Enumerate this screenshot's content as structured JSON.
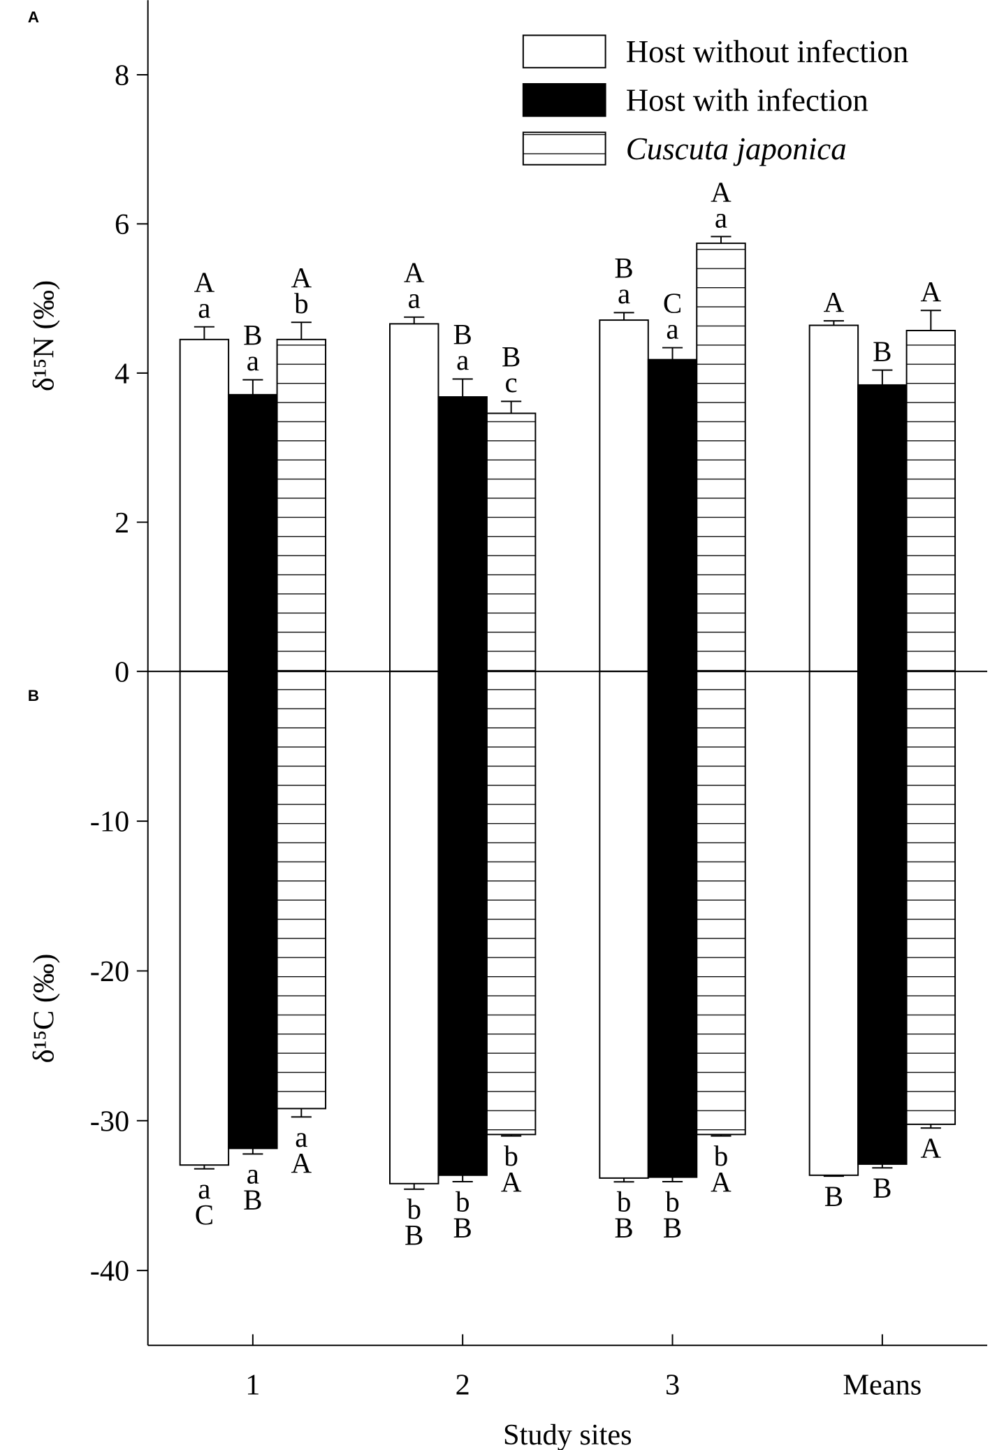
{
  "chart_data": [
    {
      "type": "bar",
      "panel_label": "A",
      "ylabel": "δ¹⁵N (‰)",
      "ylim": [
        0,
        9
      ],
      "yticks": [
        0,
        2,
        4,
        6,
        8
      ],
      "legend": "upper right",
      "series": [
        {
          "name": "Host without infection",
          "color": "#ffffff",
          "hatch": false,
          "values": [
            4.45,
            4.66,
            4.71,
            4.64
          ],
          "errors": [
            0.17,
            0.09,
            0.1,
            0.06
          ],
          "labels": [
            [
              "A",
              "a"
            ],
            [
              "A",
              "a"
            ],
            [
              "B",
              "a"
            ],
            [
              "A"
            ]
          ]
        },
        {
          "name": "Host with infection",
          "color": "#000000",
          "hatch": false,
          "values": [
            3.71,
            3.68,
            4.18,
            3.84
          ],
          "errors": [
            0.2,
            0.24,
            0.16,
            0.2
          ],
          "labels": [
            [
              "B",
              "a"
            ],
            [
              "B",
              "a"
            ],
            [
              "C",
              "a"
            ],
            [
              "B"
            ]
          ]
        },
        {
          "name": "Cuscuta japonica",
          "color": "#ffffff",
          "hatch": true,
          "values": [
            4.45,
            3.46,
            5.74,
            4.57
          ],
          "errors": [
            0.23,
            0.16,
            0.09,
            0.27
          ],
          "labels": [
            [
              "A",
              "b"
            ],
            [
              "B",
              "c"
            ],
            [
              "A",
              "a"
            ],
            [
              "A"
            ]
          ]
        }
      ]
    },
    {
      "type": "bar",
      "panel_label": "B",
      "ylabel": "δ¹⁵C (‰)",
      "xlabel": "Study sites",
      "categories": [
        "1",
        "2",
        "3",
        "Means"
      ],
      "ylim": [
        -45,
        0
      ],
      "yticks": [
        -40,
        -30,
        -20,
        -10
      ],
      "series": [
        {
          "color": "#ffffff",
          "hatch": false,
          "values": [
            -32.96,
            -34.2,
            -33.83,
            -33.64
          ],
          "errors": [
            0.25,
            0.37,
            0.25,
            0.06
          ],
          "labels": [
            [
              "a",
              "C"
            ],
            [
              "b",
              "B"
            ],
            [
              "b",
              "B"
            ],
            [
              "B"
            ]
          ]
        },
        {
          "color": "#000000",
          "hatch": false,
          "values": [
            -31.85,
            -33.64,
            -33.77,
            -32.9
          ],
          "errors": [
            0.37,
            0.43,
            0.3,
            0.25
          ],
          "labels": [
            [
              "a",
              "B"
            ],
            [
              "b",
              "B"
            ],
            [
              "b",
              "B"
            ],
            [
              "B"
            ]
          ]
        },
        {
          "color": "#ffffff",
          "hatch": true,
          "values": [
            -29.19,
            -30.92,
            -30.92,
            -30.24
          ],
          "errors": [
            0.56,
            0.1,
            0.1,
            0.25
          ],
          "labels": [
            [
              "a",
              "A"
            ],
            [
              "b",
              "A"
            ],
            [
              "b",
              "A"
            ],
            [
              "A"
            ]
          ]
        }
      ]
    }
  ]
}
